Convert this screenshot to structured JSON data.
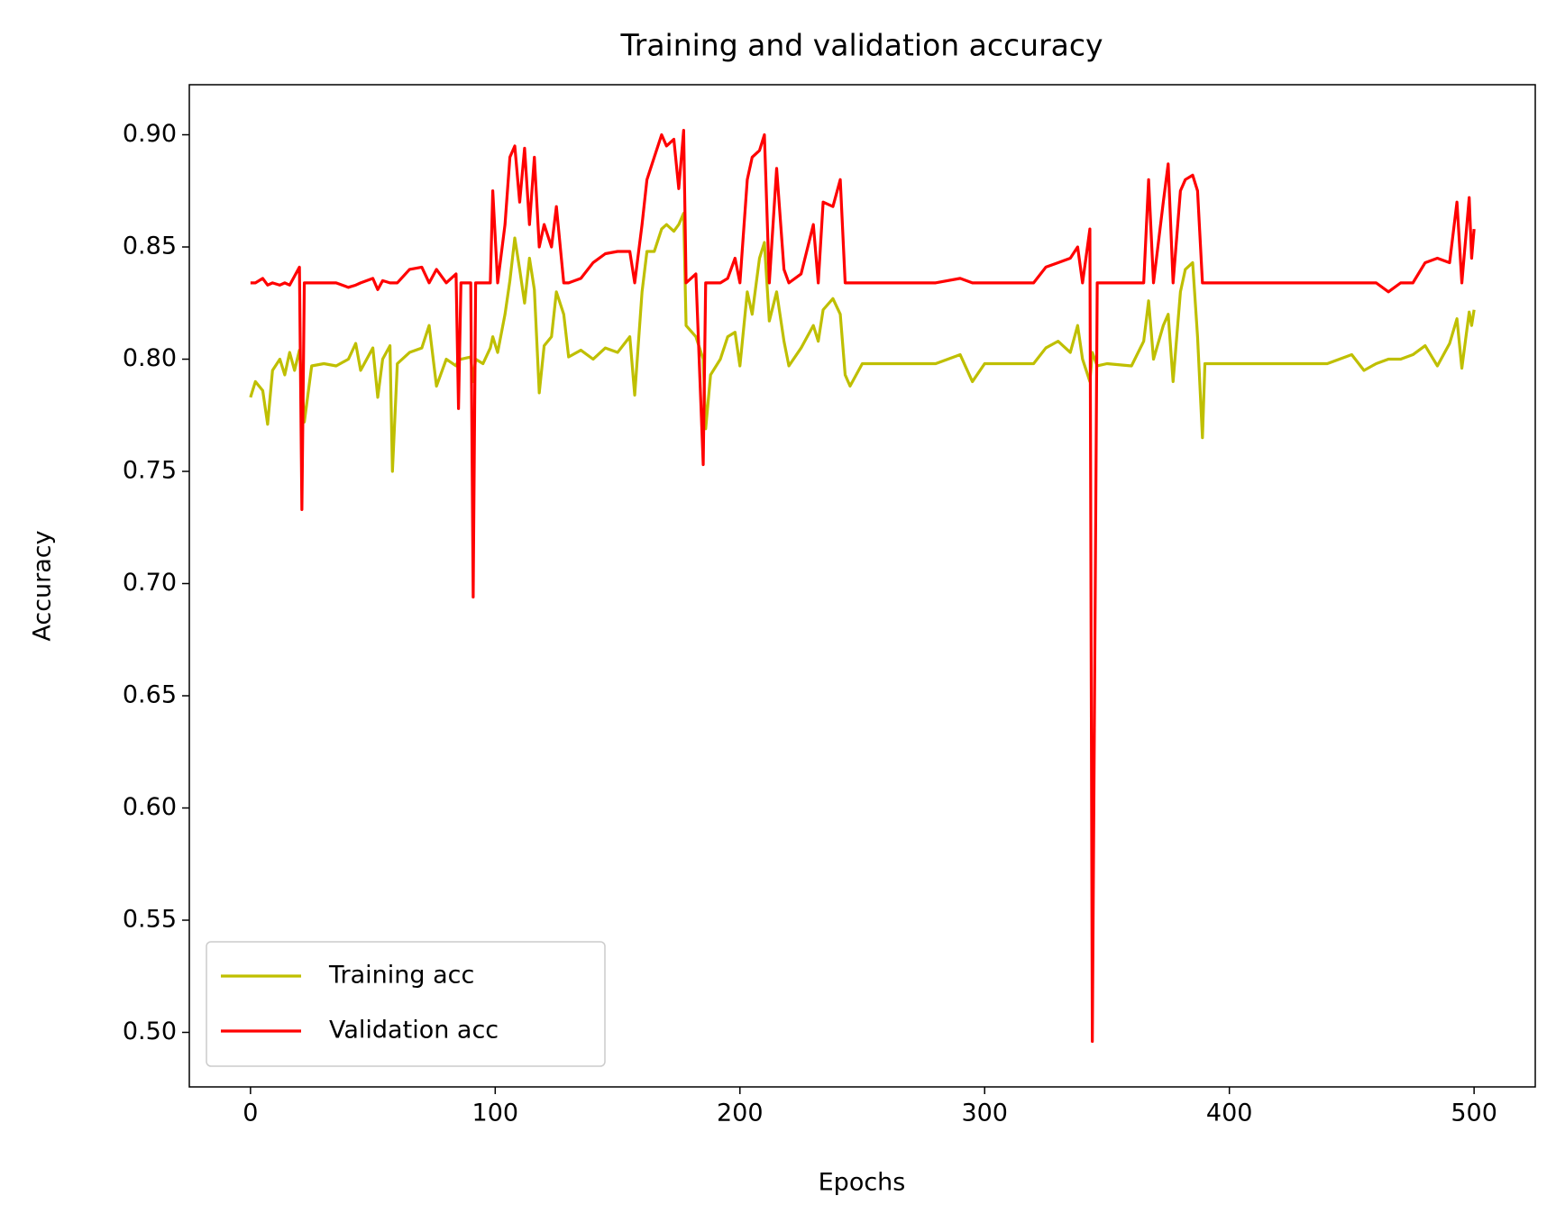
{
  "chart_data": {
    "type": "line",
    "title": "Training and validation accuracy",
    "x_label": "Epochs",
    "y_label": "Accuracy",
    "x": [
      0,
      2,
      5,
      7,
      9,
      12,
      14,
      16,
      18,
      20,
      21,
      22,
      25,
      30,
      35,
      40,
      43,
      45,
      50,
      52,
      54,
      57,
      58,
      60,
      65,
      70,
      73,
      76,
      80,
      84,
      85,
      86,
      90,
      91,
      92,
      95,
      98,
      99,
      101,
      104,
      106,
      108,
      110,
      112,
      114,
      116,
      118,
      120,
      123,
      125,
      128,
      130,
      135,
      140,
      145,
      150,
      155,
      157,
      160,
      162,
      165,
      168,
      170,
      173,
      175,
      177,
      178,
      182,
      185,
      186,
      188,
      192,
      195,
      198,
      200,
      203,
      205,
      208,
      210,
      212,
      215,
      218,
      220,
      225,
      230,
      232,
      234,
      238,
      241,
      243,
      245,
      250,
      260,
      280,
      290,
      295,
      300,
      320,
      325,
      330,
      335,
      338,
      340,
      343,
      344,
      346,
      350,
      360,
      365,
      367,
      369,
      373,
      375,
      377,
      380,
      382,
      385,
      387,
      389,
      390,
      400,
      440,
      450,
      455,
      460,
      465,
      470,
      475,
      480,
      485,
      490,
      493,
      495,
      498,
      499,
      500
    ],
    "series": [
      {
        "name": "Training acc",
        "color": "#bfbf00",
        "values": [
          0.783,
          0.79,
          0.786,
          0.771,
          0.795,
          0.8,
          0.793,
          0.803,
          0.795,
          0.804,
          0.79,
          0.772,
          0.797,
          0.798,
          0.797,
          0.8,
          0.807,
          0.795,
          0.805,
          0.783,
          0.8,
          0.806,
          0.75,
          0.798,
          0.803,
          0.805,
          0.815,
          0.788,
          0.8,
          0.797,
          0.8,
          0.8,
          0.801,
          0.79,
          0.8,
          0.798,
          0.805,
          0.81,
          0.803,
          0.82,
          0.835,
          0.854,
          0.84,
          0.825,
          0.845,
          0.831,
          0.785,
          0.806,
          0.81,
          0.83,
          0.82,
          0.801,
          0.804,
          0.8,
          0.805,
          0.803,
          0.81,
          0.784,
          0.83,
          0.848,
          0.848,
          0.858,
          0.86,
          0.857,
          0.86,
          0.865,
          0.815,
          0.81,
          0.8,
          0.769,
          0.793,
          0.8,
          0.81,
          0.812,
          0.797,
          0.83,
          0.82,
          0.845,
          0.852,
          0.817,
          0.83,
          0.808,
          0.797,
          0.805,
          0.815,
          0.808,
          0.822,
          0.827,
          0.82,
          0.793,
          0.788,
          0.798,
          0.798,
          0.798,
          0.802,
          0.79,
          0.798,
          0.798,
          0.805,
          0.808,
          0.803,
          0.815,
          0.8,
          0.79,
          0.803,
          0.797,
          0.798,
          0.797,
          0.808,
          0.826,
          0.8,
          0.815,
          0.82,
          0.79,
          0.83,
          0.84,
          0.843,
          0.81,
          0.765,
          0.798,
          0.798,
          0.798,
          0.802,
          0.795,
          0.798,
          0.8,
          0.8,
          0.802,
          0.806,
          0.797,
          0.807,
          0.818,
          0.796,
          0.821,
          0.815,
          0.822
        ]
      },
      {
        "name": "Validation acc",
        "color": "#ff0000",
        "values": [
          0.834,
          0.834,
          0.836,
          0.833,
          0.834,
          0.833,
          0.834,
          0.833,
          0.837,
          0.841,
          0.733,
          0.834,
          0.834,
          0.834,
          0.834,
          0.832,
          0.833,
          0.834,
          0.836,
          0.831,
          0.835,
          0.834,
          0.834,
          0.834,
          0.84,
          0.841,
          0.834,
          0.84,
          0.834,
          0.838,
          0.778,
          0.834,
          0.834,
          0.694,
          0.834,
          0.834,
          0.834,
          0.875,
          0.834,
          0.86,
          0.89,
          0.895,
          0.87,
          0.894,
          0.86,
          0.89,
          0.85,
          0.86,
          0.85,
          0.868,
          0.834,
          0.834,
          0.836,
          0.843,
          0.847,
          0.848,
          0.848,
          0.834,
          0.86,
          0.88,
          0.89,
          0.9,
          0.895,
          0.898,
          0.876,
          0.902,
          0.834,
          0.838,
          0.753,
          0.834,
          0.834,
          0.834,
          0.836,
          0.845,
          0.834,
          0.88,
          0.89,
          0.893,
          0.9,
          0.834,
          0.885,
          0.84,
          0.834,
          0.838,
          0.86,
          0.834,
          0.87,
          0.868,
          0.88,
          0.834,
          0.834,
          0.834,
          0.834,
          0.834,
          0.836,
          0.834,
          0.834,
          0.834,
          0.841,
          0.843,
          0.845,
          0.85,
          0.834,
          0.858,
          0.496,
          0.834,
          0.834,
          0.834,
          0.834,
          0.88,
          0.834,
          0.87,
          0.887,
          0.834,
          0.875,
          0.88,
          0.882,
          0.875,
          0.834,
          0.834,
          0.834,
          0.834,
          0.834,
          0.834,
          0.834,
          0.83,
          0.834,
          0.834,
          0.843,
          0.845,
          0.843,
          0.87,
          0.834,
          0.872,
          0.845,
          0.858
        ]
      }
    ],
    "xlim": [
      -25,
      525
    ],
    "ylim": [
      0.4757,
      0.9223
    ],
    "xticks": [
      0,
      100,
      200,
      300,
      400,
      500
    ],
    "yticks": [
      {
        "value": 0.5,
        "label": "0.50"
      },
      {
        "value": 0.55,
        "label": "0.55"
      },
      {
        "value": 0.6,
        "label": "0.60"
      },
      {
        "value": 0.65,
        "label": "0.65"
      },
      {
        "value": 0.7,
        "label": "0.70"
      },
      {
        "value": 0.75,
        "label": "0.75"
      },
      {
        "value": 0.8,
        "label": "0.80"
      },
      {
        "value": 0.85,
        "label": "0.85"
      },
      {
        "value": 0.9,
        "label": "0.90"
      }
    ],
    "grid": false,
    "legend": "lower left"
  }
}
